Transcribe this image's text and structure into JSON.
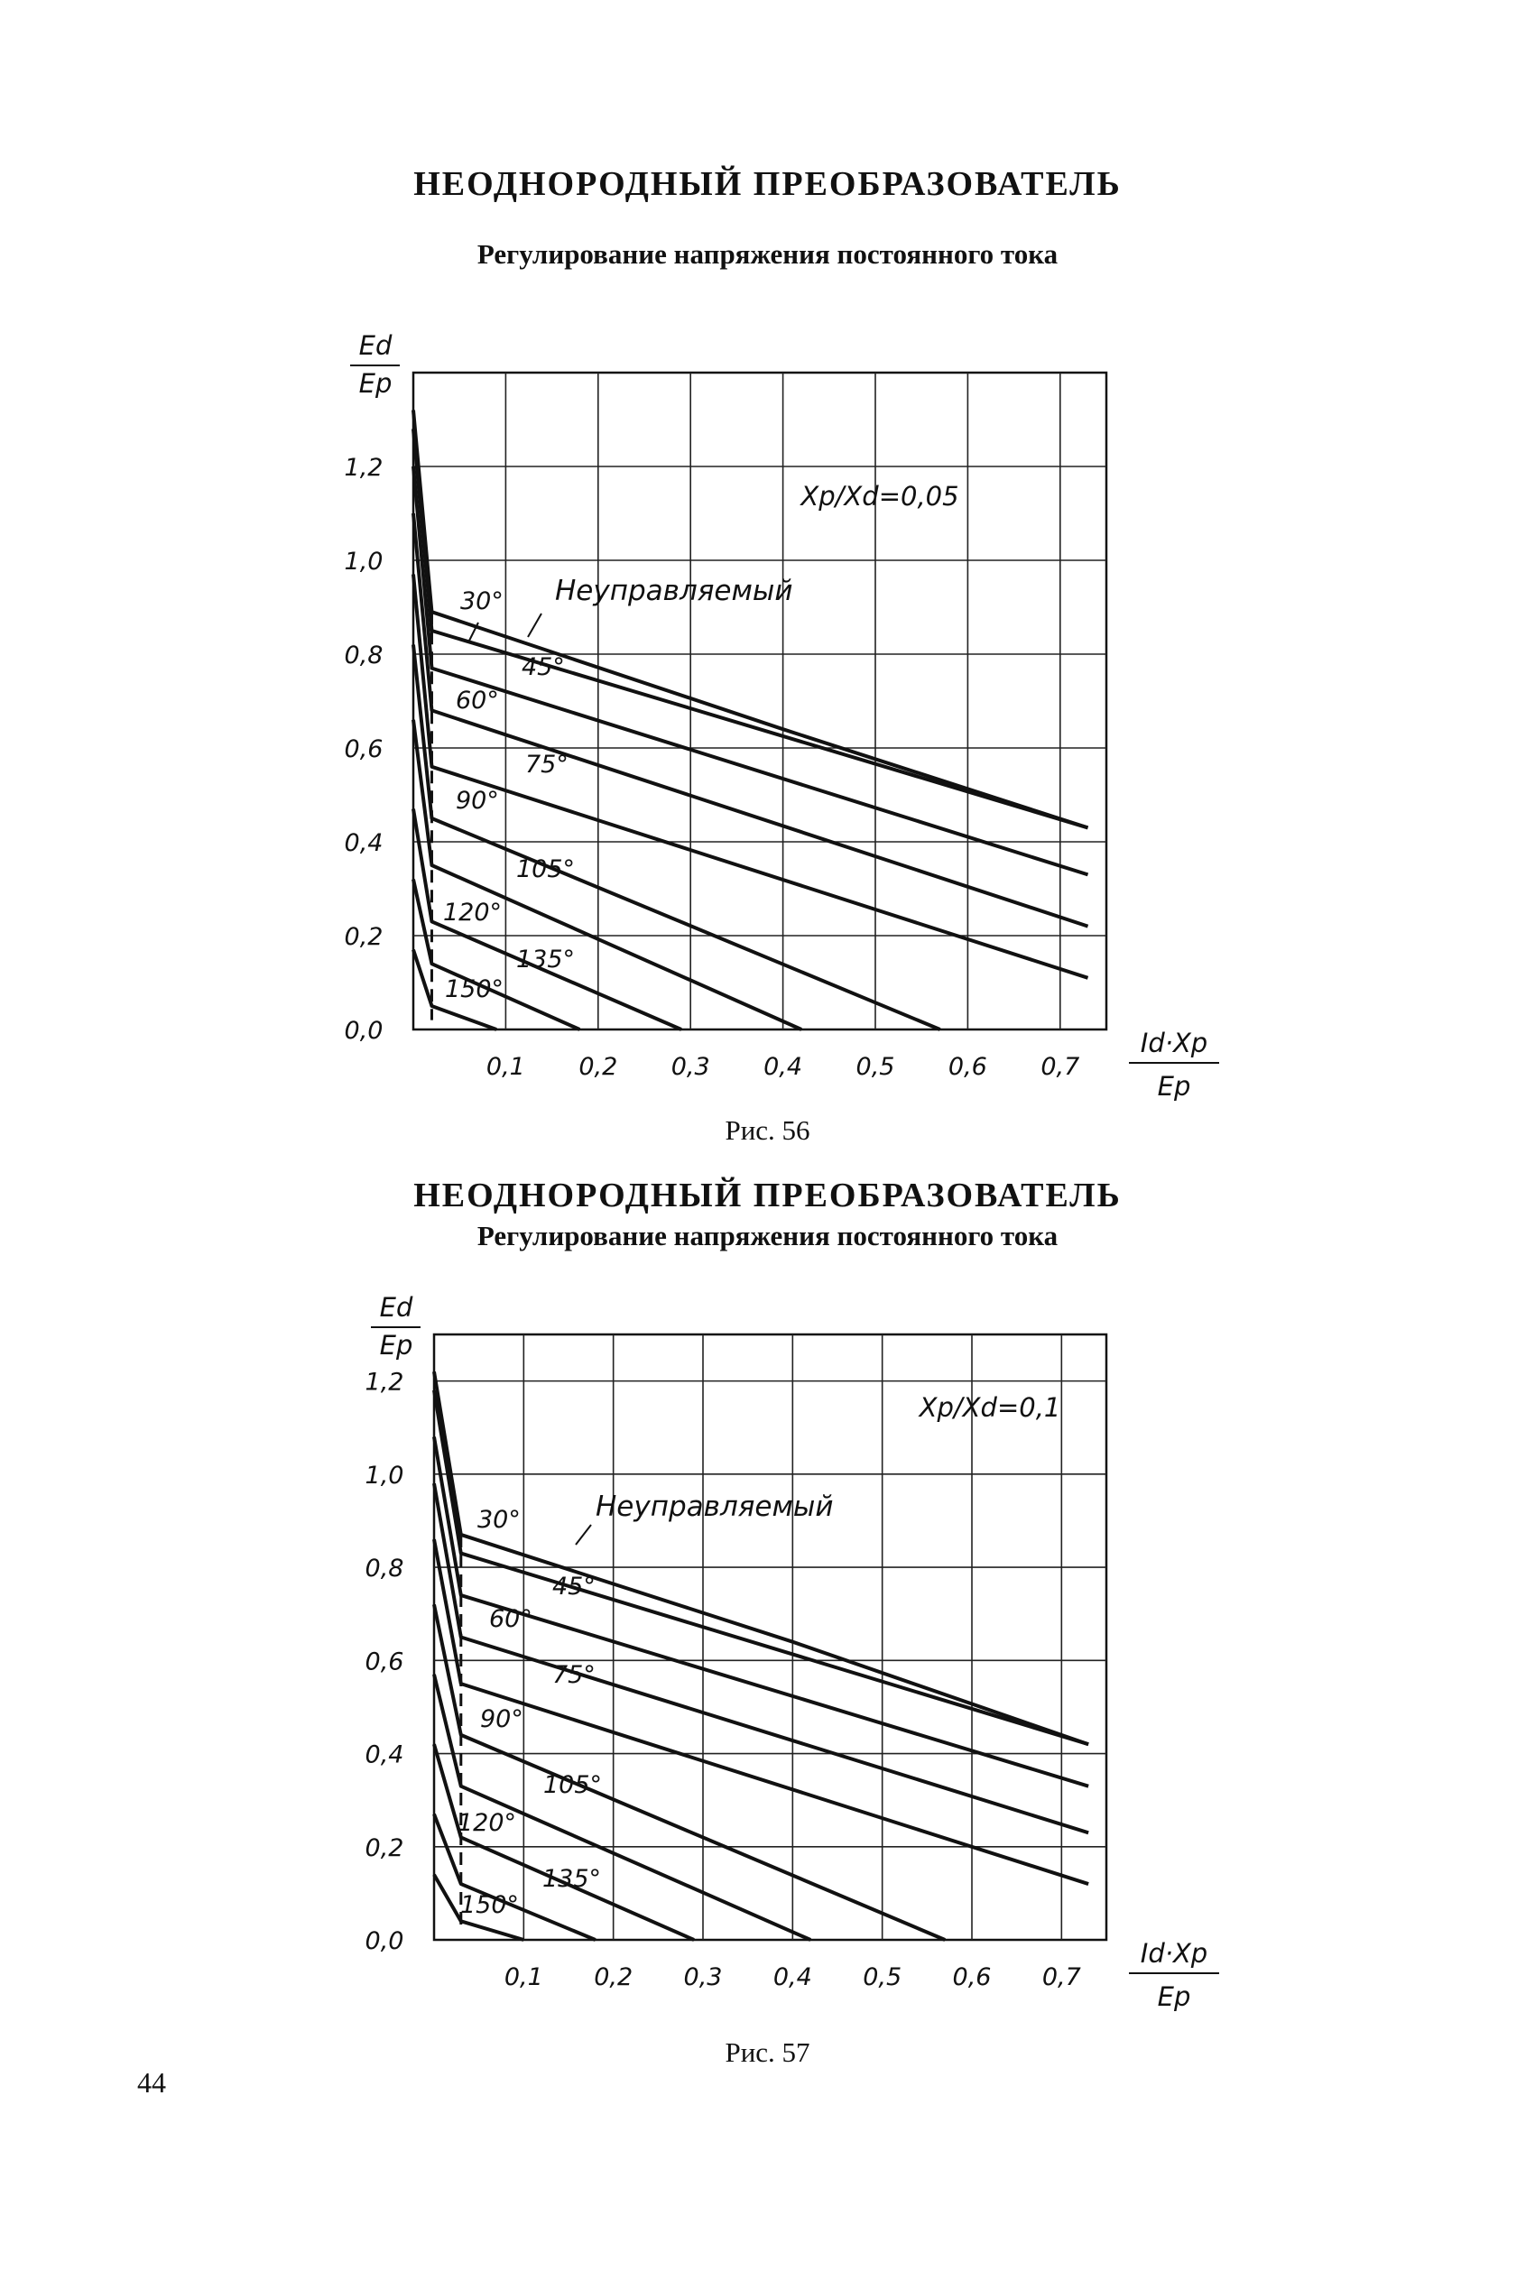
{
  "page_number": "44",
  "figures": [
    {
      "title": "НЕОДНОРОДНЫЙ ПРЕОБРАЗОВАТЕЛЬ",
      "subtitle": "Регулирование напряжения постоянного тока",
      "caption": "Рис. 56"
    },
    {
      "title": "НЕОДНОРОДНЫЙ ПРЕОБРАЗОВАТЕЛЬ",
      "subtitle": "Регулирование напряжения постоянного тока",
      "caption": "Рис. 57"
    }
  ],
  "chart_data": [
    {
      "type": "line",
      "title": "НЕОДНОРОДНЫЙ ПРЕОБРАЗОВАТЕЛЬ",
      "subtitle": "Регулирование напряжения постоянного тока",
      "ylabel_num": "Ed",
      "ylabel_den": "Ep",
      "xlabel_num": "Id·Xp",
      "xlabel_den": "Ep",
      "parameter": "Xp/Xd=0,05",
      "x_ticks": [
        "0,1",
        "0,2",
        "0,3",
        "0,4",
        "0,5",
        "0,6",
        "0,7"
      ],
      "y_ticks": [
        "0,0",
        "0,2",
        "0,4",
        "0,6",
        "0,8",
        "1,0",
        "1,2"
      ],
      "xlim": [
        0,
        0.75
      ],
      "ylim": [
        0,
        1.4
      ],
      "grid": true,
      "series": [
        {
          "name": "Неуправляемый",
          "x": [
            0,
            0.02,
            0.4,
            0.73
          ],
          "y": [
            1.32,
            0.89,
            0.64,
            0.43
          ]
        },
        {
          "name": "30°",
          "x": [
            0,
            0.02,
            0.73
          ],
          "y": [
            1.28,
            0.85,
            0.43
          ]
        },
        {
          "name": "45°",
          "x": [
            0,
            0.02,
            0.73
          ],
          "y": [
            1.2,
            0.77,
            0.33
          ]
        },
        {
          "name": "60°",
          "x": [
            0,
            0.02,
            0.73
          ],
          "y": [
            1.1,
            0.68,
            0.22
          ]
        },
        {
          "name": "75°",
          "x": [
            0,
            0.02,
            0.73
          ],
          "y": [
            0.97,
            0.56,
            0.11
          ]
        },
        {
          "name": "90°",
          "x": [
            0,
            0.02,
            0.57
          ],
          "y": [
            0.82,
            0.45,
            0.0
          ]
        },
        {
          "name": "105°",
          "x": [
            0,
            0.02,
            0.42
          ],
          "y": [
            0.66,
            0.35,
            0.0
          ]
        },
        {
          "name": "120°",
          "x": [
            0,
            0.02,
            0.29
          ],
          "y": [
            0.47,
            0.23,
            0.0
          ]
        },
        {
          "name": "135°",
          "x": [
            0,
            0.02,
            0.18
          ],
          "y": [
            0.32,
            0.14,
            0.0
          ]
        },
        {
          "name": "150°",
          "x": [
            0,
            0.02,
            0.09
          ],
          "y": [
            0.17,
            0.05,
            0.0
          ]
        }
      ]
    },
    {
      "type": "line",
      "title": "НЕОДНОРОДНЫЙ ПРЕОБРАЗОВАТЕЛЬ",
      "subtitle": "Регулирование напряжения постоянного тока",
      "ylabel_num": "Ed",
      "ylabel_den": "Ep",
      "xlabel_num": "Id·Xp",
      "xlabel_den": "Ep",
      "parameter": "Xp/Xd=0,1",
      "x_ticks": [
        "0,1",
        "0,2",
        "0,3",
        "0,4",
        "0,5",
        "0,6",
        "0,7"
      ],
      "y_ticks": [
        "0,0",
        "0,2",
        "0,4",
        "0,6",
        "0,8",
        "1,0",
        "1,2"
      ],
      "xlim": [
        0,
        0.75
      ],
      "ylim": [
        0,
        1.3
      ],
      "grid": true,
      "series": [
        {
          "name": "Неуправляемый",
          "x": [
            0,
            0.03,
            0.4,
            0.73
          ],
          "y": [
            1.22,
            0.87,
            0.64,
            0.42
          ]
        },
        {
          "name": "30°",
          "x": [
            0,
            0.03,
            0.73
          ],
          "y": [
            1.18,
            0.83,
            0.42
          ]
        },
        {
          "name": "45°",
          "x": [
            0,
            0.03,
            0.73
          ],
          "y": [
            1.08,
            0.74,
            0.33
          ]
        },
        {
          "name": "60°",
          "x": [
            0,
            0.03,
            0.73
          ],
          "y": [
            0.98,
            0.65,
            0.23
          ]
        },
        {
          "name": "75°",
          "x": [
            0,
            0.03,
            0.73
          ],
          "y": [
            0.86,
            0.55,
            0.12
          ]
        },
        {
          "name": "90°",
          "x": [
            0,
            0.03,
            0.57
          ],
          "y": [
            0.72,
            0.44,
            0.0
          ]
        },
        {
          "name": "105°",
          "x": [
            0,
            0.03,
            0.42
          ],
          "y": [
            0.57,
            0.33,
            0.0
          ]
        },
        {
          "name": "120°",
          "x": [
            0,
            0.03,
            0.29
          ],
          "y": [
            0.42,
            0.22,
            0.0
          ]
        },
        {
          "name": "135°",
          "x": [
            0,
            0.03,
            0.18
          ],
          "y": [
            0.27,
            0.12,
            0.0
          ]
        },
        {
          "name": "150°",
          "x": [
            0,
            0.03,
            0.1
          ],
          "y": [
            0.14,
            0.04,
            0.0
          ]
        }
      ]
    }
  ]
}
